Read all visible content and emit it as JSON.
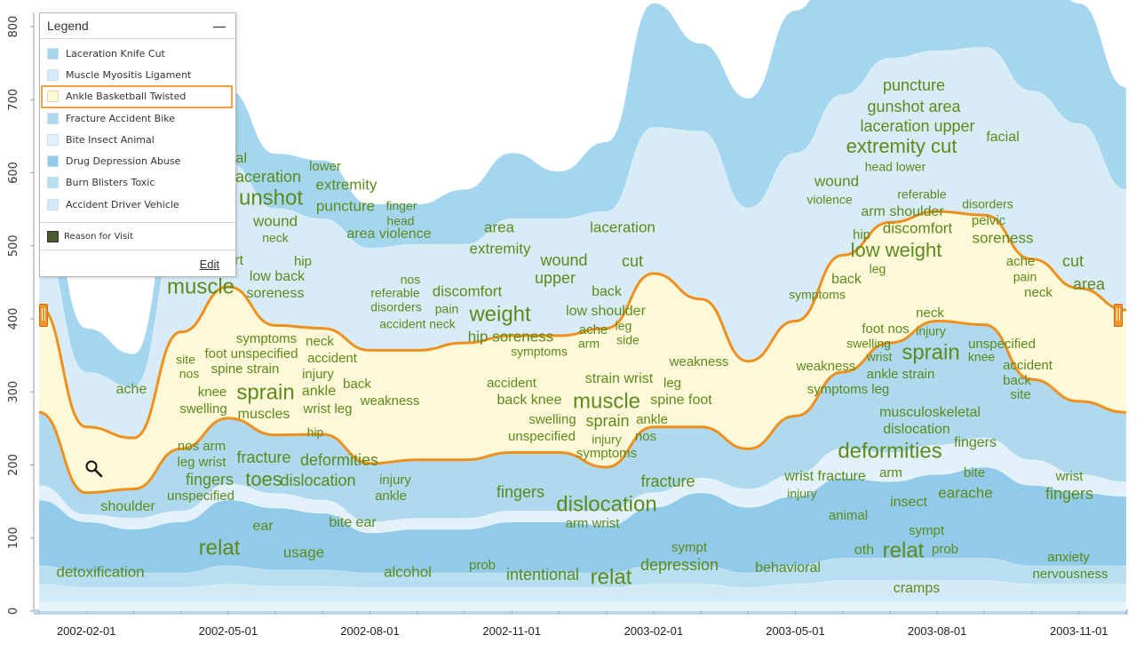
{
  "chart_data": {
    "type": "area",
    "subtype": "streamgraph-word-cloud",
    "ylim": [
      0,
      800
    ],
    "yticks": [
      "0",
      "100",
      "200",
      "300",
      "400",
      "500",
      "600",
      "700",
      "800"
    ],
    "x": [
      "2002-01",
      "2002-02",
      "2002-03",
      "2002-04",
      "2002-05",
      "2002-06",
      "2002-07",
      "2002-08",
      "2002-09",
      "2002-10",
      "2002-11",
      "2002-12",
      "2003-01",
      "2003-02",
      "2003-03",
      "2003-04",
      "2003-05",
      "2003-06",
      "2003-07",
      "2003-08",
      "2003-09",
      "2003-10",
      "2003-11",
      "2003-12"
    ],
    "xticks": [
      "2002-02-01",
      "2002-05-01",
      "2002-08-01",
      "2002-11-01",
      "2003-02-01",
      "2003-05-01",
      "2003-08-01",
      "2003-11-01"
    ],
    "highlighted_series": "Ankle Basketball Twisted",
    "series": [
      {
        "name": "Laceration Knife Cut",
        "values": [
          90,
          60,
          45,
          80,
          100,
          75,
          80,
          60,
          55,
          75,
          90,
          65,
          95,
          170,
          120,
          150,
          195,
          205,
          210,
          235,
          245,
          200,
          165,
          140
        ]
      },
      {
        "name": "Muscle Myositis Ligament",
        "values": [
          95,
          75,
          70,
          145,
          170,
          160,
          150,
          140,
          145,
          135,
          160,
          160,
          160,
          200,
          230,
          210,
          230,
          220,
          225,
          220,
          230,
          230,
          225,
          165
        ]
      },
      {
        "name": "Ankle Basketball Twisted",
        "values": [
          145,
          90,
          70,
          160,
          180,
          150,
          145,
          155,
          150,
          160,
          160,
          160,
          190,
          210,
          175,
          120,
          130,
          160,
          165,
          150,
          150,
          165,
          155,
          140
        ]
      },
      {
        "name": "Fracture Accident Bike",
        "values": [
          100,
          30,
          40,
          85,
          90,
          80,
          90,
          80,
          80,
          80,
          80,
          80,
          60,
          90,
          70,
          55,
          80,
          105,
          150,
          170,
          155,
          110,
          100,
          95
        ]
      },
      {
        "name": "Bite Insect Animal",
        "values": [
          20,
          10,
          15,
          15,
          22,
          20,
          18,
          15,
          15,
          15,
          15,
          15,
          20,
          20,
          20,
          25,
          30,
          40,
          40,
          40,
          40,
          35,
          25,
          20
        ]
      },
      {
        "name": "Drug Depression Abuse",
        "values": [
          90,
          70,
          60,
          70,
          90,
          85,
          78,
          55,
          60,
          60,
          70,
          70,
          65,
          80,
          100,
          90,
          95,
          110,
          105,
          115,
          125,
          110,
          100,
          95
        ]
      },
      {
        "name": "Burn Blisters Toxic",
        "values": [
          25,
          20,
          20,
          20,
          25,
          22,
          22,
          20,
          20,
          20,
          20,
          20,
          20,
          25,
          25,
          20,
          25,
          30,
          30,
          30,
          30,
          25,
          25,
          25
        ]
      },
      {
        "name": "Accident Driver Vehicle",
        "values": [
          25,
          20,
          20,
          20,
          25,
          22,
          22,
          20,
          20,
          20,
          20,
          20,
          20,
          25,
          25,
          20,
          25,
          30,
          30,
          30,
          30,
          25,
          25,
          25
        ]
      }
    ],
    "legend": {
      "title": "Legend",
      "minimize": "—",
      "items": [
        "Laceration Knife Cut",
        "Muscle Myositis Ligament",
        "Ankle Basketball Twisted",
        "Fracture Accident Bike",
        "Bite Insect Animal",
        "Drug Depression Abuse",
        "Burn Blisters Toxic",
        "Accident Driver Vehicle"
      ],
      "reason": "Reason for Visit",
      "edit": "Edit"
    },
    "colors": {
      "s0": "#a5d6ef",
      "s1": "#d7ecf7",
      "s2": "#fdf9d8",
      "s3": "#aed9ee",
      "s4": "#e3f2fa",
      "s5": "#92cbe9",
      "s6": "#b7def1",
      "s7": "#d1eaf6",
      "highlight_outline": "#f0901c",
      "words": "#5c8a1c"
    },
    "words": [
      {
        "t": "cut",
        "x": 1208,
        "y": 295,
        "s": 18
      },
      {
        "t": "area",
        "x": 1226,
        "y": 321,
        "s": 18
      },
      {
        "t": "facial",
        "x": 1129,
        "y": 155,
        "s": 16
      },
      {
        "t": "puncture",
        "x": 1029,
        "y": 97,
        "s": 18
      },
      {
        "t": "gunshot area",
        "x": 1029,
        "y": 121,
        "s": 18
      },
      {
        "t": "laceration upper",
        "x": 1033,
        "y": 143,
        "s": 18
      },
      {
        "t": "extremity cut",
        "x": 1015,
        "y": 166,
        "s": 22
      },
      {
        "t": "head lower",
        "x": 1008,
        "y": 189,
        "s": 14
      },
      {
        "t": "wound",
        "x": 942,
        "y": 205,
        "s": 17
      },
      {
        "t": "violence",
        "x": 934,
        "y": 226,
        "s": 14
      },
      {
        "t": "referable",
        "x": 1038,
        "y": 220,
        "s": 14
      },
      {
        "t": "arm shoulder",
        "x": 1016,
        "y": 239,
        "s": 16
      },
      {
        "t": "disorders",
        "x": 1112,
        "y": 231,
        "s": 14
      },
      {
        "t": "pelvic",
        "x": 1113,
        "y": 249,
        "s": 15
      },
      {
        "t": "discomfort",
        "x": 1033,
        "y": 258,
        "s": 17
      },
      {
        "t": "hip",
        "x": 970,
        "y": 265,
        "s": 15
      },
      {
        "t": "low weight",
        "x": 1009,
        "y": 283,
        "s": 22
      },
      {
        "t": "soreness",
        "x": 1129,
        "y": 269,
        "s": 17
      },
      {
        "t": "leg",
        "x": 988,
        "y": 304,
        "s": 14
      },
      {
        "t": "ache",
        "x": 1149,
        "y": 295,
        "s": 15
      },
      {
        "t": "pain",
        "x": 1154,
        "y": 313,
        "s": 14
      },
      {
        "t": "neck",
        "x": 1169,
        "y": 330,
        "s": 15
      },
      {
        "t": "back",
        "x": 953,
        "y": 315,
        "s": 16
      },
      {
        "t": "symptoms",
        "x": 920,
        "y": 333,
        "s": 14
      },
      {
        "t": "ial",
        "x": 270,
        "y": 179,
        "s": 16
      },
      {
        "t": "aceration",
        "x": 302,
        "y": 200,
        "s": 18
      },
      {
        "t": "lower",
        "x": 366,
        "y": 188,
        "s": 15
      },
      {
        "t": "extremity",
        "x": 390,
        "y": 209,
        "s": 17
      },
      {
        "t": "unshot",
        "x": 305,
        "y": 224,
        "s": 24
      },
      {
        "t": "puncture",
        "x": 389,
        "y": 233,
        "s": 17
      },
      {
        "t": "finger",
        "x": 452,
        "y": 233,
        "s": 14
      },
      {
        "t": "head",
        "x": 451,
        "y": 250,
        "s": 14
      },
      {
        "t": "wound",
        "x": 310,
        "y": 250,
        "s": 17
      },
      {
        "t": "neck",
        "x": 310,
        "y": 269,
        "s": 14
      },
      {
        "t": "area violence",
        "x": 438,
        "y": 264,
        "s": 16
      },
      {
        "t": "rt",
        "x": 269,
        "y": 294,
        "s": 16
      },
      {
        "t": "hip",
        "x": 341,
        "y": 295,
        "s": 15
      },
      {
        "t": "low back",
        "x": 312,
        "y": 312,
        "s": 16
      },
      {
        "t": "muscle",
        "x": 226,
        "y": 324,
        "s": 24
      },
      {
        "t": "soreness",
        "x": 310,
        "y": 331,
        "s": 16
      },
      {
        "t": "area",
        "x": 562,
        "y": 257,
        "s": 17
      },
      {
        "t": "extremity",
        "x": 563,
        "y": 281,
        "s": 17
      },
      {
        "t": "laceration",
        "x": 701,
        "y": 257,
        "s": 17
      },
      {
        "t": "wound",
        "x": 635,
        "y": 294,
        "s": 18
      },
      {
        "t": "cut",
        "x": 712,
        "y": 295,
        "s": 18
      },
      {
        "t": "upper",
        "x": 625,
        "y": 314,
        "s": 18
      },
      {
        "t": "nos",
        "x": 462,
        "y": 316,
        "s": 14
      },
      {
        "t": "referable",
        "x": 445,
        "y": 331,
        "s": 14
      },
      {
        "t": "discomfort",
        "x": 526,
        "y": 329,
        "s": 17
      },
      {
        "t": "back",
        "x": 683,
        "y": 329,
        "s": 16
      },
      {
        "t": "disorders",
        "x": 446,
        "y": 347,
        "s": 14
      },
      {
        "t": "pain",
        "x": 503,
        "y": 349,
        "s": 14
      },
      {
        "t": "weight",
        "x": 563,
        "y": 355,
        "s": 24
      },
      {
        "t": "low shoulder",
        "x": 682,
        "y": 351,
        "s": 16
      },
      {
        "t": "accident neck",
        "x": 470,
        "y": 366,
        "s": 14
      },
      {
        "t": "hip soreness",
        "x": 575,
        "y": 380,
        "s": 17
      },
      {
        "t": "ache",
        "x": 668,
        "y": 372,
        "s": 15
      },
      {
        "t": "leg",
        "x": 702,
        "y": 368,
        "s": 14
      },
      {
        "t": "arm",
        "x": 663,
        "y": 388,
        "s": 14
      },
      {
        "t": "side",
        "x": 707,
        "y": 384,
        "s": 14
      },
      {
        "t": "symptoms",
        "x": 607,
        "y": 397,
        "s": 14
      },
      {
        "t": "ache",
        "x": 148,
        "y": 439,
        "s": 16
      },
      {
        "t": "symptoms",
        "x": 300,
        "y": 382,
        "s": 15
      },
      {
        "t": "neck",
        "x": 360,
        "y": 385,
        "s": 15
      },
      {
        "t": "site",
        "x": 209,
        "y": 406,
        "s": 14
      },
      {
        "t": "foot unspecified",
        "x": 283,
        "y": 399,
        "s": 15
      },
      {
        "t": "accident",
        "x": 374,
        "y": 404,
        "s": 15
      },
      {
        "t": "nos",
        "x": 213,
        "y": 422,
        "s": 14
      },
      {
        "t": "spine strain",
        "x": 276,
        "y": 416,
        "s": 15
      },
      {
        "t": "injury",
        "x": 358,
        "y": 422,
        "s": 15
      },
      {
        "t": "back",
        "x": 402,
        "y": 433,
        "s": 15
      },
      {
        "t": "knee",
        "x": 239,
        "y": 442,
        "s": 15
      },
      {
        "t": "sprain",
        "x": 299,
        "y": 443,
        "s": 24
      },
      {
        "t": "ankle",
        "x": 359,
        "y": 441,
        "s": 16
      },
      {
        "t": "weakness",
        "x": 439,
        "y": 452,
        "s": 15
      },
      {
        "t": "swelling",
        "x": 229,
        "y": 461,
        "s": 15
      },
      {
        "t": "muscles",
        "x": 297,
        "y": 467,
        "s": 16
      },
      {
        "t": "wrist leg",
        "x": 369,
        "y": 461,
        "s": 15
      },
      {
        "t": "hip",
        "x": 355,
        "y": 488,
        "s": 14
      },
      {
        "t": "weakness",
        "x": 787,
        "y": 408,
        "s": 15
      },
      {
        "t": "strain wrist",
        "x": 697,
        "y": 427,
        "s": 16
      },
      {
        "t": "accident",
        "x": 576,
        "y": 432,
        "s": 15
      },
      {
        "t": "leg",
        "x": 757,
        "y": 432,
        "s": 15
      },
      {
        "t": "back knee",
        "x": 596,
        "y": 451,
        "s": 16
      },
      {
        "t": "muscle",
        "x": 683,
        "y": 453,
        "s": 24
      },
      {
        "t": "spine foot",
        "x": 767,
        "y": 451,
        "s": 16
      },
      {
        "t": "swelling",
        "x": 622,
        "y": 473,
        "s": 15
      },
      {
        "t": "sprain",
        "x": 684,
        "y": 475,
        "s": 18
      },
      {
        "t": "ankle",
        "x": 734,
        "y": 473,
        "s": 15
      },
      {
        "t": "unspecified",
        "x": 610,
        "y": 492,
        "s": 15
      },
      {
        "t": "injury",
        "x": 683,
        "y": 496,
        "s": 14
      },
      {
        "t": "nos",
        "x": 727,
        "y": 492,
        "s": 15
      },
      {
        "t": "symptoms",
        "x": 683,
        "y": 511,
        "s": 15
      },
      {
        "t": "neck",
        "x": 1047,
        "y": 353,
        "s": 15
      },
      {
        "t": "foot nos",
        "x": 997,
        "y": 371,
        "s": 15
      },
      {
        "t": "injury",
        "x": 1048,
        "y": 374,
        "s": 14
      },
      {
        "t": "swelling",
        "x": 978,
        "y": 388,
        "s": 14
      },
      {
        "t": "sprain",
        "x": 1048,
        "y": 398,
        "s": 24
      },
      {
        "t": "unspecified",
        "x": 1128,
        "y": 388,
        "s": 15
      },
      {
        "t": "wrist",
        "x": 990,
        "y": 403,
        "s": 14
      },
      {
        "t": "knee",
        "x": 1105,
        "y": 403,
        "s": 14
      },
      {
        "t": "accident",
        "x": 1157,
        "y": 412,
        "s": 15
      },
      {
        "t": "weakness",
        "x": 930,
        "y": 413,
        "s": 15
      },
      {
        "t": "ankle strain",
        "x": 1014,
        "y": 422,
        "s": 15
      },
      {
        "t": "back",
        "x": 1145,
        "y": 429,
        "s": 15
      },
      {
        "t": "symptoms leg",
        "x": 955,
        "y": 439,
        "s": 15
      },
      {
        "t": "site",
        "x": 1149,
        "y": 445,
        "s": 15
      },
      {
        "t": "musculoskeletal",
        "x": 1047,
        "y": 465,
        "s": 16
      },
      {
        "t": "dislocation",
        "x": 1032,
        "y": 484,
        "s": 16
      },
      {
        "t": "deformities",
        "x": 1002,
        "y": 509,
        "s": 24
      },
      {
        "t": "fingers",
        "x": 1098,
        "y": 499,
        "s": 16
      },
      {
        "t": "nos arm",
        "x": 227,
        "y": 503,
        "s": 15
      },
      {
        "t": "leg wrist",
        "x": 227,
        "y": 521,
        "s": 15
      },
      {
        "t": "fracture",
        "x": 297,
        "y": 516,
        "s": 18
      },
      {
        "t": "deformities",
        "x": 382,
        "y": 519,
        "s": 18
      },
      {
        "t": "fingers",
        "x": 236,
        "y": 541,
        "s": 18
      },
      {
        "t": "toes",
        "x": 297,
        "y": 541,
        "s": 22
      },
      {
        "t": "dislocation",
        "x": 358,
        "y": 542,
        "s": 18
      },
      {
        "t": "injury",
        "x": 445,
        "y": 541,
        "s": 15
      },
      {
        "t": "unspecified",
        "x": 226,
        "y": 559,
        "s": 15
      },
      {
        "t": "ankle",
        "x": 440,
        "y": 559,
        "s": 15
      },
      {
        "t": "shoulder",
        "x": 144,
        "y": 571,
        "s": 16
      },
      {
        "t": "fingers",
        "x": 586,
        "y": 555,
        "s": 18
      },
      {
        "t": "dislocation",
        "x": 683,
        "y": 569,
        "s": 24
      },
      {
        "t": "fracture",
        "x": 752,
        "y": 543,
        "s": 18
      },
      {
        "t": "arm wrist",
        "x": 667,
        "y": 590,
        "s": 15
      },
      {
        "t": "wrist fracture",
        "x": 929,
        "y": 537,
        "s": 16
      },
      {
        "t": "arm",
        "x": 1003,
        "y": 533,
        "s": 15
      },
      {
        "t": "bite",
        "x": 1097,
        "y": 533,
        "s": 15
      },
      {
        "t": "wrist",
        "x": 1204,
        "y": 537,
        "s": 15
      },
      {
        "t": "injury",
        "x": 903,
        "y": 557,
        "s": 14
      },
      {
        "t": "insect",
        "x": 1023,
        "y": 566,
        "s": 16
      },
      {
        "t": "earache",
        "x": 1087,
        "y": 556,
        "s": 17
      },
      {
        "t": "fingers",
        "x": 1204,
        "y": 557,
        "s": 18
      },
      {
        "t": "animal",
        "x": 955,
        "y": 581,
        "s": 15
      },
      {
        "t": "ear",
        "x": 296,
        "y": 593,
        "s": 16
      },
      {
        "t": "bite ear",
        "x": 397,
        "y": 589,
        "s": 16
      },
      {
        "t": "relat",
        "x": 247,
        "y": 618,
        "s": 24
      },
      {
        "t": "usage",
        "x": 342,
        "y": 623,
        "s": 17
      },
      {
        "t": "detoxification",
        "x": 113,
        "y": 645,
        "s": 17
      },
      {
        "t": "alcohol",
        "x": 459,
        "y": 645,
        "s": 17
      },
      {
        "t": "prob",
        "x": 543,
        "y": 637,
        "s": 15
      },
      {
        "t": "intentional",
        "x": 611,
        "y": 648,
        "s": 18
      },
      {
        "t": "relat",
        "x": 688,
        "y": 651,
        "s": 24
      },
      {
        "t": "sympt",
        "x": 776,
        "y": 617,
        "s": 15
      },
      {
        "t": "depression",
        "x": 765,
        "y": 637,
        "s": 18
      },
      {
        "t": "behavioral",
        "x": 887,
        "y": 640,
        "s": 16
      },
      {
        "t": "sympt",
        "x": 1043,
        "y": 598,
        "s": 15
      },
      {
        "t": "oth",
        "x": 973,
        "y": 620,
        "s": 16
      },
      {
        "t": "relat",
        "x": 1017,
        "y": 621,
        "s": 24
      },
      {
        "t": "prob",
        "x": 1064,
        "y": 619,
        "s": 15
      },
      {
        "t": "cramps",
        "x": 1032,
        "y": 663,
        "s": 16
      },
      {
        "t": "anxiety",
        "x": 1203,
        "y": 628,
        "s": 15
      },
      {
        "t": "nervousness",
        "x": 1205,
        "y": 647,
        "s": 15
      }
    ]
  }
}
